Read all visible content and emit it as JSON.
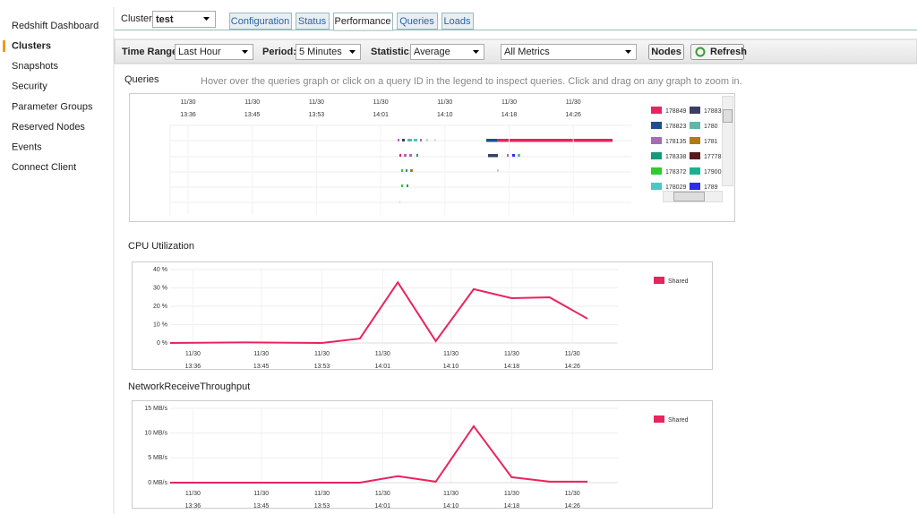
{
  "sidebar": {
    "items": [
      "Redshift Dashboard",
      "Clusters",
      "Snapshots",
      "Security",
      "Parameter Groups",
      "Reserved Nodes",
      "Events",
      "Connect Client"
    ],
    "active": 1
  },
  "top": {
    "cluster_label": "Cluster:",
    "cluster": "test",
    "tabs": [
      "Configuration",
      "Status",
      "Performance",
      "Queries",
      "Loads"
    ],
    "active_tab": 2
  },
  "toolbar": {
    "time_range_label": "Time Range:",
    "time_range": "Last Hour",
    "period_label": "Period:",
    "period": "5 Minutes",
    "statistic_label": "Statistic:",
    "statistic": "Average",
    "metrics": "All Metrics",
    "nodes_button": "Nodes",
    "refresh_button": "Refresh"
  },
  "queries": {
    "title": "Queries",
    "hint": "Hover over the queries graph or click on a query ID in the legend to inspect queries. Click and drag on any graph to zoom in.",
    "xtick_labels": [
      "11/30 13:36",
      "11/30 13:45",
      "11/30 13:53",
      "11/30 14:01",
      "11/30 14:10",
      "11/30 14:18",
      "11/30 14:26"
    ],
    "legend": [
      {
        "name": "178849",
        "color": "#e8245f"
      },
      {
        "name": "17883",
        "color": "#3a3f66"
      },
      {
        "name": "178823",
        "color": "#1e4f8f"
      },
      {
        "name": "1780",
        "color": "#5fb7a8"
      },
      {
        "name": "178135",
        "color": "#a76bb5"
      },
      {
        "name": "1781",
        "color": "#b07b1a"
      },
      {
        "name": "178338",
        "color": "#159a7a"
      },
      {
        "name": "17778",
        "color": "#5a1a1a"
      },
      {
        "name": "178372",
        "color": "#2ecc2e"
      },
      {
        "name": "17900",
        "color": "#1db090"
      },
      {
        "name": "178029",
        "color": "#4fc6c6"
      },
      {
        "name": "1789",
        "color": "#2d2df0"
      }
    ]
  },
  "chart_data": [
    {
      "type": "line",
      "title": "CPU Utilization",
      "x": [
        813,
        823,
        833,
        838,
        843,
        848,
        853,
        858,
        863,
        868
      ],
      "series": [
        {
          "name": "Shared",
          "color": "#e8245f",
          "values": [
            0,
            0.3,
            0,
            2.4,
            33,
            1,
            29.3,
            24.4,
            24.9,
            13.2
          ]
        }
      ],
      "xlim": [
        813,
        872
      ],
      "xticks": [
        {
          "value": 816,
          "label": "11/30 13:36"
        },
        {
          "value": 825,
          "label": "11/30 13:45"
        },
        {
          "value": 833,
          "label": "11/30 13:53"
        },
        {
          "value": 841,
          "label": "11/30 14:01"
        },
        {
          "value": 850,
          "label": "11/30 14:10"
        },
        {
          "value": 858,
          "label": "11/30 14:18"
        },
        {
          "value": 866,
          "label": "11/30 14:26"
        }
      ],
      "ylim": [
        0,
        40
      ],
      "yticks": [
        {
          "value": 0,
          "label": "0 %"
        },
        {
          "value": 10,
          "label": "10 %"
        },
        {
          "value": 20,
          "label": "20 %"
        },
        {
          "value": 30,
          "label": "30 %"
        },
        {
          "value": 40,
          "label": "40 %"
        }
      ],
      "grid": true,
      "legend": "right"
    },
    {
      "type": "line",
      "title": "NetworkReceiveThroughput",
      "x": [
        813,
        823,
        833,
        838,
        843,
        848,
        853,
        858,
        863,
        868
      ],
      "series": [
        {
          "name": "Shared",
          "color": "#e8245f",
          "values": [
            0,
            0,
            0,
            0,
            1.3,
            0.2,
            11.4,
            1.1,
            0.2,
            0.2
          ]
        }
      ],
      "xlim": [
        813,
        872
      ],
      "xticks": [
        {
          "value": 816,
          "label": "11/30 13:36"
        },
        {
          "value": 825,
          "label": "11/30 13:45"
        },
        {
          "value": 833,
          "label": "11/30 13:53"
        },
        {
          "value": 841,
          "label": "11/30 14:01"
        },
        {
          "value": 850,
          "label": "11/30 14:10"
        },
        {
          "value": 858,
          "label": "11/30 14:18"
        },
        {
          "value": 866,
          "label": "11/30 14:26"
        }
      ],
      "ylim": [
        0,
        15
      ],
      "yticks": [
        {
          "value": 0,
          "label": "0 MB/s"
        },
        {
          "value": 5,
          "label": "5 MB/s"
        },
        {
          "value": 10,
          "label": "10 MB/s"
        },
        {
          "value": 15,
          "label": "15 MB/s"
        }
      ],
      "grid": true,
      "legend": "right"
    }
  ]
}
